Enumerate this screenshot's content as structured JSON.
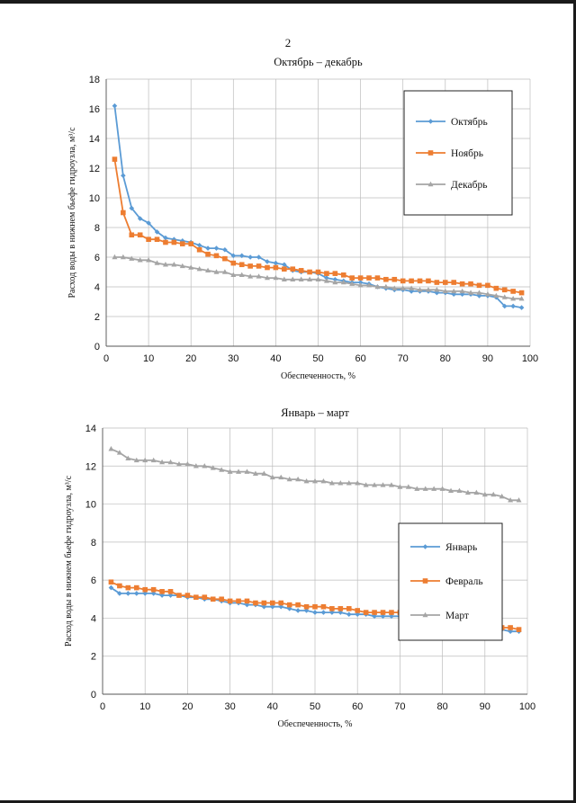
{
  "page": {
    "number": "2"
  },
  "chart_data": [
    {
      "type": "line",
      "title": "Октябрь – декабрь",
      "xlabel": "Обеспеченность, %",
      "ylabel": "Расход воды в нижнем бьефе гидроузла, м³/с",
      "xlim": [
        0,
        100
      ],
      "ylim": [
        0,
        18
      ],
      "xticks": [
        "0",
        "10",
        "20",
        "30",
        "40",
        "50",
        "60",
        "70",
        "80",
        "90",
        "100"
      ],
      "yticks": [
        "0",
        "2",
        "4",
        "6",
        "8",
        "10",
        "12",
        "14",
        "16",
        "18"
      ],
      "grid": true,
      "legend_position": "top-right",
      "series": [
        {
          "name": "Октябрь",
          "color": "#5b9bd5",
          "marker": "diamond",
          "x": [
            2,
            4,
            6,
            8,
            10,
            12,
            14,
            16,
            18,
            20,
            22,
            24,
            26,
            28,
            30,
            32,
            34,
            36,
            38,
            40,
            42,
            44,
            46,
            48,
            50,
            52,
            54,
            56,
            58,
            60,
            62,
            64,
            66,
            68,
            70,
            72,
            74,
            76,
            78,
            80,
            82,
            84,
            86,
            88,
            90,
            92,
            94,
            96,
            98
          ],
          "y": [
            16.2,
            11.5,
            9.3,
            8.6,
            8.3,
            7.7,
            7.3,
            7.2,
            7.1,
            7.0,
            6.8,
            6.6,
            6.6,
            6.5,
            6.1,
            6.1,
            6.0,
            6.0,
            5.7,
            5.6,
            5.5,
            5.1,
            5.0,
            5.0,
            4.9,
            4.6,
            4.5,
            4.4,
            4.3,
            4.3,
            4.2,
            4.0,
            3.9,
            3.8,
            3.8,
            3.7,
            3.7,
            3.7,
            3.6,
            3.6,
            3.5,
            3.5,
            3.5,
            3.4,
            3.4,
            3.3,
            2.7,
            2.7,
            2.6
          ]
        },
        {
          "name": "Ноябрь",
          "color": "#ed7d31",
          "marker": "square",
          "x": [
            2,
            4,
            6,
            8,
            10,
            12,
            14,
            16,
            18,
            20,
            22,
            24,
            26,
            28,
            30,
            32,
            34,
            36,
            38,
            40,
            42,
            44,
            46,
            48,
            50,
            52,
            54,
            56,
            58,
            60,
            62,
            64,
            66,
            68,
            70,
            72,
            74,
            76,
            78,
            80,
            82,
            84,
            86,
            88,
            90,
            92,
            94,
            96,
            98
          ],
          "y": [
            12.6,
            9.0,
            7.5,
            7.5,
            7.2,
            7.2,
            7.0,
            7.0,
            6.9,
            6.9,
            6.5,
            6.2,
            6.1,
            5.9,
            5.6,
            5.5,
            5.4,
            5.4,
            5.3,
            5.3,
            5.2,
            5.2,
            5.1,
            5.0,
            5.0,
            4.9,
            4.9,
            4.8,
            4.6,
            4.6,
            4.6,
            4.6,
            4.5,
            4.5,
            4.4,
            4.4,
            4.4,
            4.4,
            4.3,
            4.3,
            4.3,
            4.2,
            4.2,
            4.1,
            4.1,
            3.9,
            3.8,
            3.7,
            3.6
          ]
        },
        {
          "name": "Декабрь",
          "color": "#a5a5a5",
          "marker": "triangle",
          "x": [
            2,
            4,
            6,
            8,
            10,
            12,
            14,
            16,
            18,
            20,
            22,
            24,
            26,
            28,
            30,
            32,
            34,
            36,
            38,
            40,
            42,
            44,
            46,
            48,
            50,
            52,
            54,
            56,
            58,
            60,
            62,
            64,
            66,
            68,
            70,
            72,
            74,
            76,
            78,
            80,
            82,
            84,
            86,
            88,
            90,
            92,
            94,
            96,
            98
          ],
          "y": [
            6.0,
            6.0,
            5.9,
            5.8,
            5.8,
            5.6,
            5.5,
            5.5,
            5.4,
            5.3,
            5.2,
            5.1,
            5.0,
            5.0,
            4.8,
            4.8,
            4.7,
            4.7,
            4.6,
            4.6,
            4.5,
            4.5,
            4.5,
            4.5,
            4.5,
            4.4,
            4.3,
            4.3,
            4.2,
            4.1,
            4.1,
            4.0,
            4.0,
            3.9,
            3.9,
            3.9,
            3.8,
            3.8,
            3.8,
            3.7,
            3.7,
            3.7,
            3.6,
            3.6,
            3.5,
            3.4,
            3.3,
            3.2,
            3.2
          ]
        }
      ]
    },
    {
      "type": "line",
      "title": "Январь – март",
      "xlabel": "Обеспеченность, %",
      "ylabel": "Расход воды в нижнем бьефе гидроузла, м³/с",
      "xlim": [
        0,
        100
      ],
      "ylim": [
        0,
        14
      ],
      "xticks": [
        "0",
        "10",
        "20",
        "30",
        "40",
        "50",
        "60",
        "70",
        "80",
        "90",
        "100"
      ],
      "yticks": [
        "0",
        "2",
        "4",
        "6",
        "8",
        "10",
        "12",
        "14"
      ],
      "grid": true,
      "legend_position": "right",
      "series": [
        {
          "name": "Январь",
          "color": "#5b9bd5",
          "marker": "diamond",
          "x": [
            2,
            4,
            6,
            8,
            10,
            12,
            14,
            16,
            18,
            20,
            22,
            24,
            26,
            28,
            30,
            32,
            34,
            36,
            38,
            40,
            42,
            44,
            46,
            48,
            50,
            52,
            54,
            56,
            58,
            60,
            62,
            64,
            66,
            68,
            70,
            72,
            74,
            76,
            78,
            80,
            82,
            84,
            86,
            88,
            90,
            92,
            94,
            96,
            98
          ],
          "y": [
            5.6,
            5.3,
            5.3,
            5.3,
            5.3,
            5.3,
            5.2,
            5.2,
            5.2,
            5.1,
            5.1,
            5.0,
            5.0,
            4.9,
            4.8,
            4.8,
            4.7,
            4.7,
            4.6,
            4.6,
            4.6,
            4.5,
            4.4,
            4.4,
            4.3,
            4.3,
            4.3,
            4.3,
            4.2,
            4.2,
            4.2,
            4.1,
            4.1,
            4.1,
            4.1,
            4.0,
            4.0,
            4.0,
            4.0,
            4.0,
            3.9,
            3.8,
            3.8,
            3.7,
            3.7,
            3.6,
            3.4,
            3.3,
            3.3
          ]
        },
        {
          "name": "Февраль",
          "color": "#ed7d31",
          "marker": "square",
          "x": [
            2,
            4,
            6,
            8,
            10,
            12,
            14,
            16,
            18,
            20,
            22,
            24,
            26,
            28,
            30,
            32,
            34,
            36,
            38,
            40,
            42,
            44,
            46,
            48,
            50,
            52,
            54,
            56,
            58,
            60,
            62,
            64,
            66,
            68,
            70,
            72,
            74,
            76,
            78,
            80,
            82,
            84,
            86,
            88,
            90,
            92,
            94,
            96,
            98
          ],
          "y": [
            5.9,
            5.7,
            5.6,
            5.6,
            5.5,
            5.5,
            5.4,
            5.4,
            5.2,
            5.2,
            5.1,
            5.1,
            5.0,
            5.0,
            4.9,
            4.9,
            4.9,
            4.8,
            4.8,
            4.8,
            4.8,
            4.7,
            4.7,
            4.6,
            4.6,
            4.6,
            4.5,
            4.5,
            4.5,
            4.4,
            4.3,
            4.3,
            4.3,
            4.3,
            4.3,
            4.2,
            4.2,
            4.2,
            4.1,
            4.1,
            4.1,
            4.0,
            4.0,
            3.9,
            3.8,
            3.7,
            3.5,
            3.5,
            3.4
          ]
        },
        {
          "name": "Март",
          "color": "#a5a5a5",
          "marker": "triangle",
          "x": [
            2,
            4,
            6,
            8,
            10,
            12,
            14,
            16,
            18,
            20,
            22,
            24,
            26,
            28,
            30,
            32,
            34,
            36,
            38,
            40,
            42,
            44,
            46,
            48,
            50,
            52,
            54,
            56,
            58,
            60,
            62,
            64,
            66,
            68,
            70,
            72,
            74,
            76,
            78,
            80,
            82,
            84,
            86,
            88,
            90,
            92,
            94,
            96,
            98
          ],
          "y": [
            12.9,
            12.7,
            12.4,
            12.3,
            12.3,
            12.3,
            12.2,
            12.2,
            12.1,
            12.1,
            12.0,
            12.0,
            11.9,
            11.8,
            11.7,
            11.7,
            11.7,
            11.6,
            11.6,
            11.4,
            11.4,
            11.3,
            11.3,
            11.2,
            11.2,
            11.2,
            11.1,
            11.1,
            11.1,
            11.1,
            11.0,
            11.0,
            11.0,
            11.0,
            10.9,
            10.9,
            10.8,
            10.8,
            10.8,
            10.8,
            10.7,
            10.7,
            10.6,
            10.6,
            10.5,
            10.5,
            10.4,
            10.2,
            10.2
          ]
        }
      ]
    }
  ]
}
